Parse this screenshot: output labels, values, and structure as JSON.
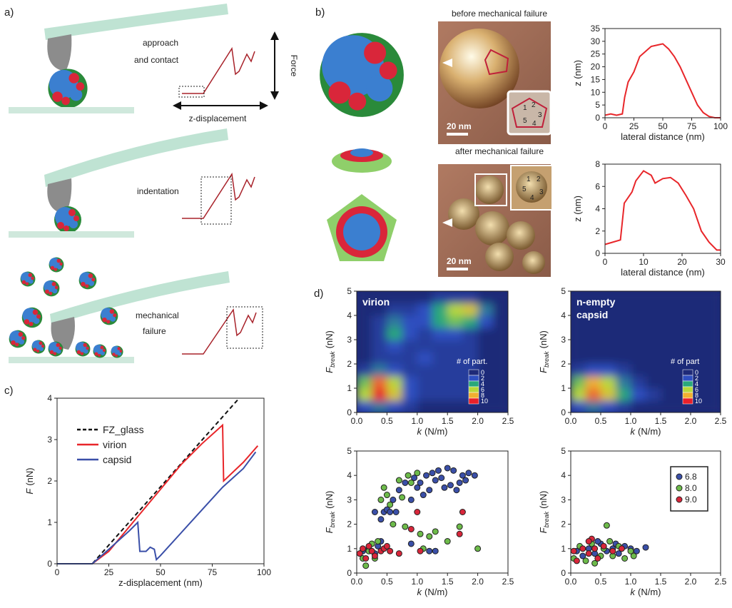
{
  "panel_labels": [
    "a)",
    "b)",
    "c)",
    "d)"
  ],
  "schematic": {
    "approach": [
      "approach",
      "and contact"
    ],
    "force_axis": "Force",
    "z_axis": "z-displacement",
    "indentation": "indentation",
    "failure": [
      "mechanical",
      "failure"
    ]
  },
  "images": {
    "before": "before mechanical failure",
    "after": "after mechanical failure",
    "scale_bars": [
      "20 nm",
      "20 nm"
    ],
    "inset_before": [
      "1",
      "2",
      "3",
      "4",
      "5"
    ],
    "inset_after": [
      "1",
      "2",
      "3",
      "4",
      "5"
    ]
  },
  "chart_data": [
    {
      "type": "line",
      "xlabel": "lateral distance (nm)",
      "ylabel": "z (nm)",
      "xlim": [
        0,
        100
      ],
      "ylim": [
        0,
        35
      ],
      "xticks": [
        0,
        25,
        50,
        75,
        100
      ],
      "yticks": [
        0,
        5,
        10,
        15,
        20,
        25,
        30,
        35
      ],
      "series": [
        {
          "color": "#e8262a",
          "x": [
            0,
            5,
            10,
            15,
            17,
            20,
            25,
            30,
            35,
            40,
            45,
            50,
            55,
            60,
            65,
            70,
            75,
            80,
            85,
            90,
            95,
            100
          ],
          "values": [
            1,
            1.5,
            1,
            1.5,
            8,
            14,
            18,
            24,
            26,
            28,
            28.5,
            29,
            27,
            24,
            20,
            15,
            10,
            5,
            2,
            0.5,
            0,
            0
          ]
        }
      ]
    },
    {
      "type": "line",
      "xlabel": "lateral distance (nm)",
      "ylabel": "z (nm)",
      "xlim": [
        0,
        30
      ],
      "ylim": [
        0,
        8
      ],
      "xticks": [
        0,
        10,
        20,
        30
      ],
      "yticks": [
        0,
        2,
        4,
        6,
        8
      ],
      "series": [
        {
          "color": "#e8262a",
          "x": [
            0,
            2,
            4,
            5,
            7,
            8,
            10,
            12,
            13,
            15,
            17,
            19,
            21,
            23,
            25,
            27,
            29,
            30
          ],
          "values": [
            0.8,
            1,
            1.2,
            4.5,
            5.5,
            6.5,
            7.4,
            7,
            6.3,
            6.7,
            6.8,
            6.3,
            5.2,
            4,
            2,
            1,
            0.3,
            0.3
          ]
        }
      ]
    },
    {
      "type": "line",
      "xlabel": "z-displacement (nm)",
      "ylabel": {
        "symbol": "F",
        "unit": "(nN)"
      },
      "xlim": [
        0,
        100
      ],
      "ylim": [
        0,
        4
      ],
      "xticks": [
        0,
        25,
        50,
        75,
        100
      ],
      "yticks": [
        0,
        1,
        2,
        3,
        4
      ],
      "legend": "upper left",
      "series": [
        {
          "name": "FZ_glass",
          "color": "#111111",
          "dash": true,
          "x": [
            0,
            17,
            88
          ],
          "values": [
            0,
            0,
            4
          ]
        },
        {
          "name": "virion",
          "color": "#e8262a",
          "x": [
            0,
            17,
            25,
            40,
            50,
            60,
            70,
            80,
            80.5,
            90,
            97
          ],
          "values": [
            0,
            0,
            0.3,
            1.2,
            1.8,
            2.4,
            2.9,
            3.35,
            2.0,
            2.45,
            2.85
          ]
        },
        {
          "name": "capsid",
          "color": "#3a4fa8",
          "x": [
            0,
            17,
            25,
            35,
            39,
            40,
            43,
            45,
            47,
            48,
            50,
            60,
            70,
            80,
            90,
            96
          ],
          "values": [
            0,
            0,
            0.35,
            0.8,
            1.0,
            0.3,
            0.3,
            0.4,
            0.35,
            0.1,
            0.2,
            0.75,
            1.3,
            1.85,
            2.3,
            2.7
          ]
        }
      ]
    },
    {
      "type": "heatmap",
      "title_lines": [
        "virion"
      ],
      "xlabel": {
        "symbol": "k",
        "unit": "(N/m)"
      },
      "ylabel": {
        "symbol": "F",
        "subscript": "break",
        "unit": "(nN)"
      },
      "xlim": [
        0,
        2.5
      ],
      "ylim": [
        0,
        5
      ],
      "xticks": [
        {
          "value": 0,
          "label": "0.0"
        },
        0.5,
        {
          "value": 1,
          "label": "1.0"
        },
        1.5,
        {
          "value": 2,
          "label": "2.0"
        },
        2.5
      ],
      "yticks": [
        0,
        1,
        2,
        3,
        4,
        5
      ],
      "xbins": [
        0,
        0.25,
        0.5,
        0.75,
        1,
        1.25,
        1.5,
        1.75,
        2,
        2.25,
        2.5
      ],
      "ybins": [
        0,
        0.5,
        1,
        1.5,
        2,
        2.5,
        3,
        3.5,
        4,
        4.5,
        5
      ],
      "grid": [
        [
          2,
          3,
          2,
          1,
          0,
          0,
          0,
          0,
          0,
          0
        ],
        [
          6,
          10,
          7,
          2,
          1,
          1,
          1,
          1,
          0,
          0
        ],
        [
          5,
          9,
          6,
          2,
          1,
          1,
          1,
          1,
          0,
          0
        ],
        [
          1,
          3,
          2,
          1,
          1,
          1,
          1,
          1,
          0,
          0
        ],
        [
          0,
          1,
          1,
          1,
          2,
          1,
          1,
          1,
          0,
          0
        ],
        [
          0,
          1,
          2,
          1,
          1,
          1,
          1,
          1,
          0,
          0
        ],
        [
          0,
          1,
          4,
          2,
          1,
          2,
          2,
          1,
          0,
          0
        ],
        [
          0,
          1,
          3,
          2,
          2,
          4,
          5,
          4,
          2,
          0
        ],
        [
          0,
          0,
          1,
          1,
          2,
          4,
          6,
          7,
          3,
          0
        ],
        [
          0,
          0,
          0,
          0,
          0,
          1,
          1,
          1,
          0,
          0
        ]
      ],
      "colorbar": {
        "title": "# of part.",
        "ticks": [
          0,
          2,
          4,
          6,
          8,
          10
        ],
        "colors": [
          "#1f2a78",
          "#2f4fc0",
          "#2aa87a",
          "#b8d83a",
          "#f0b030",
          "#e8202a"
        ]
      }
    },
    {
      "type": "heatmap",
      "title_lines": [
        "n-empty",
        "capsid"
      ],
      "xlabel": {
        "symbol": "k",
        "unit": "(N/m)"
      },
      "ylabel": {
        "symbol": "F",
        "subscript": "break",
        "unit": "(nN)"
      },
      "xlim": [
        0,
        2.5
      ],
      "ylim": [
        0,
        5
      ],
      "xticks": [
        {
          "value": 0,
          "label": "0.0"
        },
        0.5,
        {
          "value": 1,
          "label": "1.0"
        },
        1.5,
        {
          "value": 2,
          "label": "2.0"
        },
        2.5
      ],
      "yticks": [
        0,
        1,
        2,
        3,
        4,
        5
      ],
      "xbins": [
        0,
        0.25,
        0.5,
        0.75,
        1,
        1.25,
        1.5,
        1.75,
        2,
        2.25,
        2.5
      ],
      "ybins": [
        0,
        0.5,
        1,
        1.5,
        2,
        2.5,
        3,
        3.5,
        4,
        4.5,
        5
      ],
      "grid": [
        [
          2,
          3,
          2,
          1,
          0,
          0,
          0,
          0,
          0,
          0
        ],
        [
          6,
          9,
          7,
          4,
          2,
          1,
          0,
          0,
          0,
          0
        ],
        [
          5,
          8,
          6,
          3,
          1,
          0,
          0,
          0,
          0,
          0
        ],
        [
          1,
          2,
          2,
          1,
          0,
          0,
          0,
          0,
          0,
          0
        ],
        [
          0,
          0,
          0,
          0,
          0,
          0,
          0,
          0,
          0,
          0
        ],
        [
          0,
          0,
          0,
          0,
          0,
          0,
          0,
          0,
          0,
          0
        ],
        [
          0,
          0,
          0,
          0,
          0,
          0,
          0,
          0,
          0,
          0
        ],
        [
          0,
          0,
          0,
          0,
          0,
          0,
          0,
          0,
          0,
          0
        ],
        [
          0,
          0,
          0,
          0,
          0,
          0,
          0,
          0,
          0,
          0
        ],
        [
          0,
          0,
          0,
          0,
          0,
          0,
          0,
          0,
          0,
          0
        ]
      ],
      "colorbar": {
        "title": "# of part",
        "ticks": [
          0,
          2,
          4,
          6,
          8,
          10
        ],
        "colors": [
          "#1f2a78",
          "#2f4fc0",
          "#2aa87a",
          "#b8d83a",
          "#f0b030",
          "#e8202a"
        ]
      }
    },
    {
      "type": "scatter",
      "xlabel": {
        "symbol": "k",
        "unit": "(N/m)"
      },
      "ylabel": {
        "symbol": "F",
        "subscript": "break",
        "unit": "(nN)"
      },
      "xlim": [
        0,
        2.5
      ],
      "ylim": [
        0,
        5
      ],
      "xticks": [
        {
          "value": 0,
          "label": "0.0"
        },
        0.5,
        {
          "value": 1,
          "label": "1.0"
        },
        1.5,
        {
          "value": 2,
          "label": "2.0"
        },
        2.5
      ],
      "yticks": [
        0,
        1,
        2,
        3,
        4,
        5
      ],
      "series": [
        {
          "color": "#3a4fa8",
          "x": [
            0.1,
            0.2,
            0.3,
            0.35,
            0.4,
            0.45,
            0.5,
            0.55,
            0.6,
            0.65,
            0.7,
            0.8,
            0.9,
            0.95,
            1.0,
            1.05,
            1.1,
            1.15,
            1.2,
            1.25,
            1.3,
            1.35,
            1.4,
            1.45,
            1.5,
            1.55,
            1.6,
            1.65,
            1.7,
            1.75,
            1.8,
            1.85,
            1.95,
            0.3,
            1.3,
            1.2,
            0.4,
            0.9
          ],
          "values": [
            0.9,
            1.0,
            0.8,
            1.1,
            2.2,
            2.5,
            2.6,
            2.5,
            3.0,
            2.5,
            3.4,
            3.7,
            3.0,
            3.9,
            3.5,
            3.7,
            3.2,
            4.0,
            3.4,
            4.1,
            3.8,
            4.2,
            3.9,
            3.5,
            4.3,
            3.6,
            4.2,
            3.4,
            3.7,
            4.0,
            3.8,
            4.1,
            4.0,
            2.5,
            0.9,
            0.9,
            1.3,
            1.2
          ]
        },
        {
          "color": "#6dbb4a",
          "x": [
            0.1,
            0.15,
            0.2,
            0.25,
            0.3,
            0.4,
            0.45,
            0.5,
            0.55,
            0.6,
            0.7,
            0.75,
            0.85,
            0.9,
            1.0,
            1.05,
            1.1,
            1.2,
            1.3,
            1.5,
            1.7,
            2.0,
            0.8,
            0.35
          ],
          "values": [
            0.6,
            0.3,
            0.9,
            1.2,
            0.6,
            3.0,
            3.5,
            3.2,
            2.8,
            2.0,
            3.8,
            3.1,
            4.0,
            3.7,
            4.1,
            1.6,
            1.0,
            1.5,
            1.7,
            1.3,
            1.9,
            1.0,
            1.9,
            1.3
          ]
        },
        {
          "color": "#d8263a",
          "x": [
            0.05,
            0.1,
            0.15,
            0.2,
            0.25,
            0.3,
            0.4,
            0.45,
            0.5,
            0.55,
            0.7,
            0.9,
            1.0,
            1.05,
            1.7,
            1.75
          ],
          "values": [
            0.8,
            1.0,
            0.6,
            1.1,
            0.9,
            0.7,
            0.9,
            1.0,
            1.1,
            0.9,
            0.8,
            1.8,
            2.5,
            0.9,
            1.6,
            2.5
          ]
        }
      ]
    },
    {
      "type": "scatter",
      "xlabel": {
        "symbol": "k",
        "unit": "(N/m)"
      },
      "ylabel": {
        "symbol": "F",
        "subscript": "break",
        "unit": "(nN)"
      },
      "xlim": [
        0,
        2.5
      ],
      "ylim": [
        0,
        5
      ],
      "legend": "upper right",
      "xticks": [
        {
          "value": 0,
          "label": "0.0"
        },
        0.5,
        {
          "value": 1,
          "label": "1.0"
        },
        1.5,
        {
          "value": 2,
          "label": "2.0"
        },
        2.5
      ],
      "yticks": [
        0,
        1,
        2,
        3,
        4,
        5
      ],
      "series": [
        {
          "name": "6.8",
          "color": "#3a4fa8",
          "x": [
            0.1,
            0.2,
            0.3,
            0.4,
            0.5,
            0.6,
            0.7,
            0.8,
            0.9,
            1.0,
            1.1,
            1.25,
            0.45,
            0.75
          ],
          "values": [
            0.9,
            0.7,
            1.0,
            0.8,
            1.2,
            0.9,
            1.0,
            0.8,
            1.1,
            1.0,
            0.9,
            1.05,
            1.3,
            1.2
          ]
        },
        {
          "name": "8.0",
          "color": "#6dbb4a",
          "x": [
            0.05,
            0.15,
            0.25,
            0.35,
            0.5,
            0.6,
            0.65,
            0.8,
            0.9,
            1.0,
            1.05,
            0.55,
            0.7,
            0.4
          ],
          "values": [
            0.6,
            1.1,
            0.5,
            1.2,
            0.7,
            1.95,
            1.3,
            1.1,
            0.6,
            0.9,
            0.7,
            1.0,
            0.7,
            0.4
          ]
        },
        {
          "name": "9.0",
          "color": "#d8263a",
          "x": [
            0.05,
            0.1,
            0.2,
            0.3,
            0.35,
            0.4,
            0.45,
            0.55,
            0.7,
            0.85,
            0.3
          ],
          "values": [
            0.9,
            0.5,
            1.0,
            0.8,
            1.4,
            1.0,
            0.6,
            1.1,
            0.9,
            1.0,
            1.3
          ]
        }
      ]
    }
  ]
}
